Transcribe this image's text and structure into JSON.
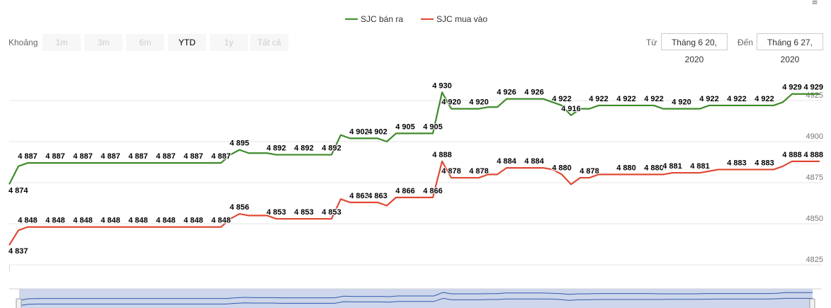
{
  "legend": [
    {
      "name": "SJC bán ra",
      "color": "#3e8b2a"
    },
    {
      "name": "SJC mua vào",
      "color": "#e04a36"
    }
  ],
  "range_selector": {
    "label": "Khoảng",
    "buttons": [
      {
        "label": "1m",
        "active": false
      },
      {
        "label": "3m",
        "active": false
      },
      {
        "label": "6m",
        "active": false
      },
      {
        "label": "YTD",
        "active": true
      },
      {
        "label": "1y",
        "active": false
      },
      {
        "label": "Tất cả",
        "active": false
      }
    ],
    "from_label": "Từ",
    "from_value": "Tháng 6 20, 2020",
    "to_label": "Đến",
    "to_value": "Tháng 6 27, 2020"
  },
  "menu_icon": "hamburger-menu-icon",
  "navigator_color": "#335cad",
  "chart_data": {
    "type": "line",
    "title": "",
    "xlabel": "",
    "ylabel": "",
    "ylim": [
      4825,
      4935
    ],
    "y_ticks": [
      "4825",
      "4850",
      "4875",
      "4900",
      "4925"
    ],
    "y_tick_values": [
      4825,
      4850,
      4875,
      4900,
      4925
    ],
    "grid": true,
    "legend_position": "top",
    "series": [
      {
        "name": "SJC bán ra",
        "color": "#3e8b2a",
        "values": [
          4874,
          4885,
          4887,
          4887,
          4887,
          4887,
          4887,
          4887,
          4887,
          4887,
          4887,
          4887,
          4887,
          4887,
          4887,
          4887,
          4887,
          4887,
          4887,
          4887,
          4887,
          4887,
          4887,
          4887,
          4892,
          4895,
          4893,
          4893,
          4893,
          4892,
          4892,
          4892,
          4892,
          4892,
          4892,
          4892,
          4904,
          4902,
          4902,
          4902,
          4902,
          4900,
          4905,
          4905,
          4905,
          4905,
          4905,
          4930,
          4920,
          4920,
          4920,
          4920,
          4921,
          4921,
          4926,
          4926,
          4926,
          4926,
          4926,
          4924,
          4922,
          4916,
          4920,
          4920,
          4922,
          4922,
          4922,
          4922,
          4922,
          4922,
          4922,
          4920,
          4920,
          4920,
          4920,
          4920,
          4922,
          4922,
          4922,
          4922,
          4922,
          4922,
          4922,
          4922,
          4924,
          4929,
          4929,
          4929,
          4929
        ],
        "labeled_points": [
          0,
          2,
          5,
          8,
          11,
          14,
          17,
          20,
          23,
          25,
          29,
          32,
          35,
          38,
          40,
          43,
          46,
          47,
          48,
          51,
          54,
          57,
          60,
          61,
          64,
          67,
          70,
          73,
          76,
          79,
          82,
          85,
          88
        ]
      },
      {
        "name": "SJC mua vào",
        "color": "#e04a36",
        "values": [
          4837,
          4846,
          4848,
          4848,
          4848,
          4848,
          4848,
          4848,
          4848,
          4848,
          4848,
          4848,
          4848,
          4848,
          4848,
          4848,
          4848,
          4848,
          4848,
          4848,
          4848,
          4848,
          4848,
          4848,
          4853,
          4856,
          4855,
          4855,
          4855,
          4853,
          4853,
          4853,
          4853,
          4853,
          4853,
          4853,
          4865,
          4863,
          4863,
          4863,
          4863,
          4861,
          4866,
          4866,
          4866,
          4866,
          4866,
          4888,
          4878,
          4878,
          4878,
          4878,
          4880,
          4880,
          4884,
          4884,
          4884,
          4884,
          4884,
          4883,
          4880,
          4874,
          4878,
          4878,
          4880,
          4880,
          4880,
          4880,
          4880,
          4880,
          4880,
          4880,
          4881,
          4881,
          4881,
          4881,
          4882,
          4883,
          4883,
          4883,
          4883,
          4883,
          4883,
          4883,
          4885,
          4888,
          4888,
          4888,
          4888
        ],
        "labeled_points": [
          0,
          2,
          5,
          8,
          11,
          14,
          17,
          20,
          23,
          25,
          29,
          32,
          35,
          38,
          40,
          43,
          46,
          47,
          48,
          51,
          54,
          57,
          60,
          63,
          67,
          70,
          72,
          75,
          79,
          82,
          85,
          88
        ]
      }
    ]
  }
}
